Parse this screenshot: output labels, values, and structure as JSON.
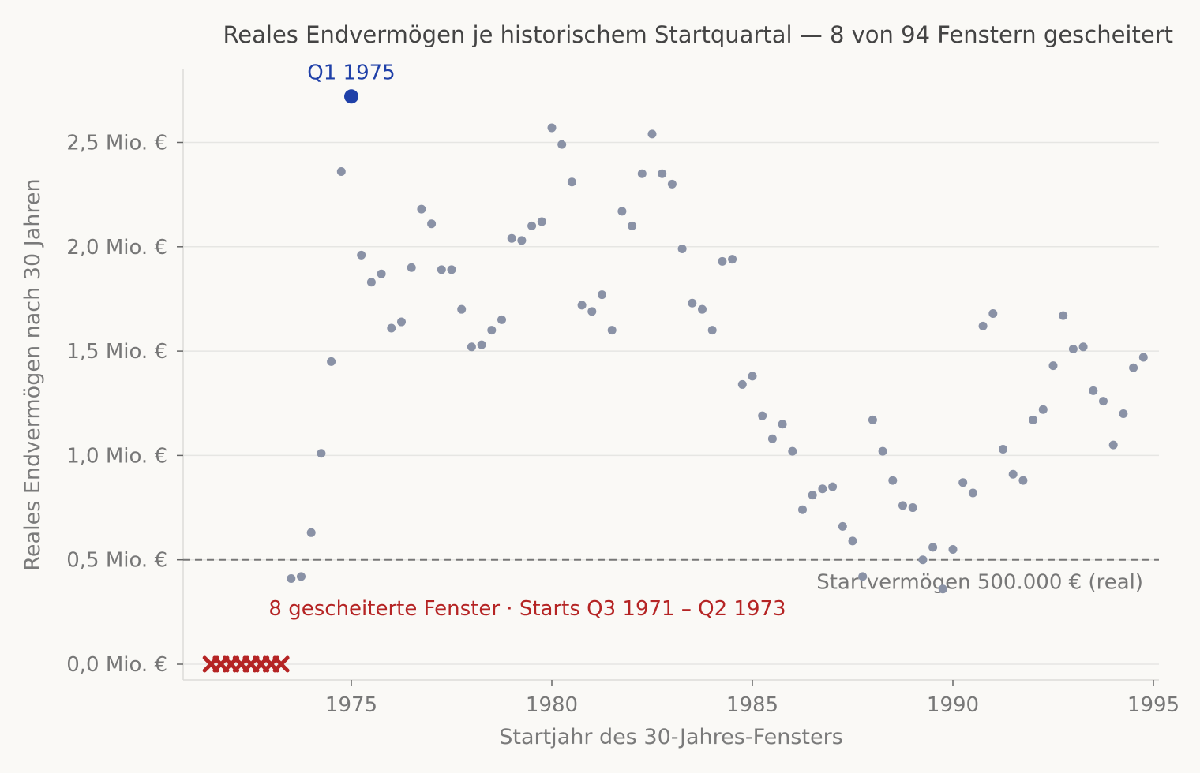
{
  "chart_data": {
    "type": "scatter",
    "title": "Reales Endvermögen je historischem Startquartal — 8 von 94 Fenstern gescheitert",
    "xlabel": "Startjahr des 30-Jahres-Fensters",
    "ylabel": "Reales Endvermögen nach 30 Jahren",
    "xlim": [
      1970.8,
      1995.0
    ],
    "ylim": [
      -0.08,
      2.85
    ],
    "x_ticks": [
      {
        "value": 1975,
        "label": "1975"
      },
      {
        "value": 1980,
        "label": "1980"
      },
      {
        "value": 1985,
        "label": "1985"
      },
      {
        "value": 1990,
        "label": "1990"
      },
      {
        "value": 1995,
        "label": "1995"
      }
    ],
    "y_ticks": [
      {
        "value": 0.0,
        "label": "0,0 Mio. €"
      },
      {
        "value": 0.5,
        "label": "0,5 Mio. €"
      },
      {
        "value": 1.0,
        "label": "1,0 Mio. €"
      },
      {
        "value": 1.5,
        "label": "1,5 Mio. €"
      },
      {
        "value": 2.0,
        "label": "2,0 Mio. €"
      },
      {
        "value": 2.5,
        "label": "2,5 Mio. €"
      }
    ],
    "grid": "horizontal",
    "reference_line": {
      "y": 0.5,
      "label": "Startvermögen 500.000 € (real)"
    },
    "failed_annotation": "8 gescheiterte Fenster · Starts Q3 1971 – Q2 1973",
    "highlight": {
      "x": 1975.0,
      "y": 2.72,
      "label": "Q1 1975"
    },
    "colors": {
      "points": "#8a92a6",
      "failed": "#b52424",
      "highlight": "#1f40a8",
      "reference": "#777777",
      "grid": "#e6e6e3",
      "text": "#777777"
    },
    "failed_points": [
      {
        "x": 1971.5,
        "y": 0.0
      },
      {
        "x": 1971.75,
        "y": 0.0
      },
      {
        "x": 1972.0,
        "y": 0.0
      },
      {
        "x": 1972.25,
        "y": 0.0
      },
      {
        "x": 1972.5,
        "y": 0.0
      },
      {
        "x": 1972.75,
        "y": 0.0
      },
      {
        "x": 1973.0,
        "y": 0.0
      },
      {
        "x": 1973.25,
        "y": 0.0
      }
    ],
    "points": [
      {
        "x": 1973.5,
        "y": 0.41
      },
      {
        "x": 1973.75,
        "y": 0.42
      },
      {
        "x": 1974.0,
        "y": 0.63
      },
      {
        "x": 1974.25,
        "y": 1.01
      },
      {
        "x": 1974.5,
        "y": 1.45
      },
      {
        "x": 1974.75,
        "y": 2.36
      },
      {
        "x": 1975.25,
        "y": 1.96
      },
      {
        "x": 1975.5,
        "y": 1.83
      },
      {
        "x": 1975.75,
        "y": 1.87
      },
      {
        "x": 1976.0,
        "y": 1.61
      },
      {
        "x": 1976.25,
        "y": 1.64
      },
      {
        "x": 1976.5,
        "y": 1.9
      },
      {
        "x": 1976.75,
        "y": 2.18
      },
      {
        "x": 1977.0,
        "y": 2.11
      },
      {
        "x": 1977.25,
        "y": 1.89
      },
      {
        "x": 1977.5,
        "y": 1.89
      },
      {
        "x": 1977.75,
        "y": 1.7
      },
      {
        "x": 1978.0,
        "y": 1.52
      },
      {
        "x": 1978.25,
        "y": 1.53
      },
      {
        "x": 1978.5,
        "y": 1.6
      },
      {
        "x": 1978.75,
        "y": 1.65
      },
      {
        "x": 1979.0,
        "y": 2.04
      },
      {
        "x": 1979.25,
        "y": 2.03
      },
      {
        "x": 1979.5,
        "y": 2.1
      },
      {
        "x": 1979.75,
        "y": 2.12
      },
      {
        "x": 1980.0,
        "y": 2.57
      },
      {
        "x": 1980.25,
        "y": 2.49
      },
      {
        "x": 1980.5,
        "y": 2.31
      },
      {
        "x": 1980.75,
        "y": 1.72
      },
      {
        "x": 1981.0,
        "y": 1.69
      },
      {
        "x": 1981.25,
        "y": 1.77
      },
      {
        "x": 1981.5,
        "y": 1.6
      },
      {
        "x": 1981.75,
        "y": 2.17
      },
      {
        "x": 1982.0,
        "y": 2.1
      },
      {
        "x": 1982.25,
        "y": 2.35
      },
      {
        "x": 1982.5,
        "y": 2.54
      },
      {
        "x": 1982.75,
        "y": 2.35
      },
      {
        "x": 1983.0,
        "y": 2.3
      },
      {
        "x": 1983.25,
        "y": 1.99
      },
      {
        "x": 1983.5,
        "y": 1.73
      },
      {
        "x": 1983.75,
        "y": 1.7
      },
      {
        "x": 1984.0,
        "y": 1.6
      },
      {
        "x": 1984.25,
        "y": 1.93
      },
      {
        "x": 1984.5,
        "y": 1.94
      },
      {
        "x": 1984.75,
        "y": 1.34
      },
      {
        "x": 1985.0,
        "y": 1.38
      },
      {
        "x": 1985.25,
        "y": 1.19
      },
      {
        "x": 1985.5,
        "y": 1.08
      },
      {
        "x": 1985.75,
        "y": 1.15
      },
      {
        "x": 1986.0,
        "y": 1.02
      },
      {
        "x": 1986.25,
        "y": 0.74
      },
      {
        "x": 1986.5,
        "y": 0.81
      },
      {
        "x": 1986.75,
        "y": 0.84
      },
      {
        "x": 1987.0,
        "y": 0.85
      },
      {
        "x": 1987.25,
        "y": 0.66
      },
      {
        "x": 1987.5,
        "y": 0.59
      },
      {
        "x": 1987.75,
        "y": 0.42
      },
      {
        "x": 1988.0,
        "y": 1.17
      },
      {
        "x": 1988.25,
        "y": 1.02
      },
      {
        "x": 1988.5,
        "y": 0.88
      },
      {
        "x": 1988.75,
        "y": 0.76
      },
      {
        "x": 1989.0,
        "y": 0.75
      },
      {
        "x": 1989.25,
        "y": 0.5
      },
      {
        "x": 1989.5,
        "y": 0.56
      },
      {
        "x": 1989.75,
        "y": 0.36
      },
      {
        "x": 1990.0,
        "y": 0.55
      },
      {
        "x": 1990.25,
        "y": 0.87
      },
      {
        "x": 1990.5,
        "y": 0.82
      },
      {
        "x": 1990.75,
        "y": 1.62
      },
      {
        "x": 1991.0,
        "y": 1.68
      },
      {
        "x": 1991.25,
        "y": 1.03
      },
      {
        "x": 1991.5,
        "y": 0.91
      },
      {
        "x": 1991.75,
        "y": 0.88
      },
      {
        "x": 1992.0,
        "y": 1.17
      },
      {
        "x": 1992.25,
        "y": 1.22
      },
      {
        "x": 1992.5,
        "y": 1.43
      },
      {
        "x": 1992.75,
        "y": 1.67
      },
      {
        "x": 1993.0,
        "y": 1.51
      },
      {
        "x": 1993.25,
        "y": 1.52
      },
      {
        "x": 1993.5,
        "y": 1.31
      },
      {
        "x": 1993.75,
        "y": 1.26
      },
      {
        "x": 1994.0,
        "y": 1.05
      },
      {
        "x": 1994.25,
        "y": 1.2
      },
      {
        "x": 1994.5,
        "y": 1.42
      },
      {
        "x": 1994.75,
        "y": 1.47
      }
    ]
  }
}
